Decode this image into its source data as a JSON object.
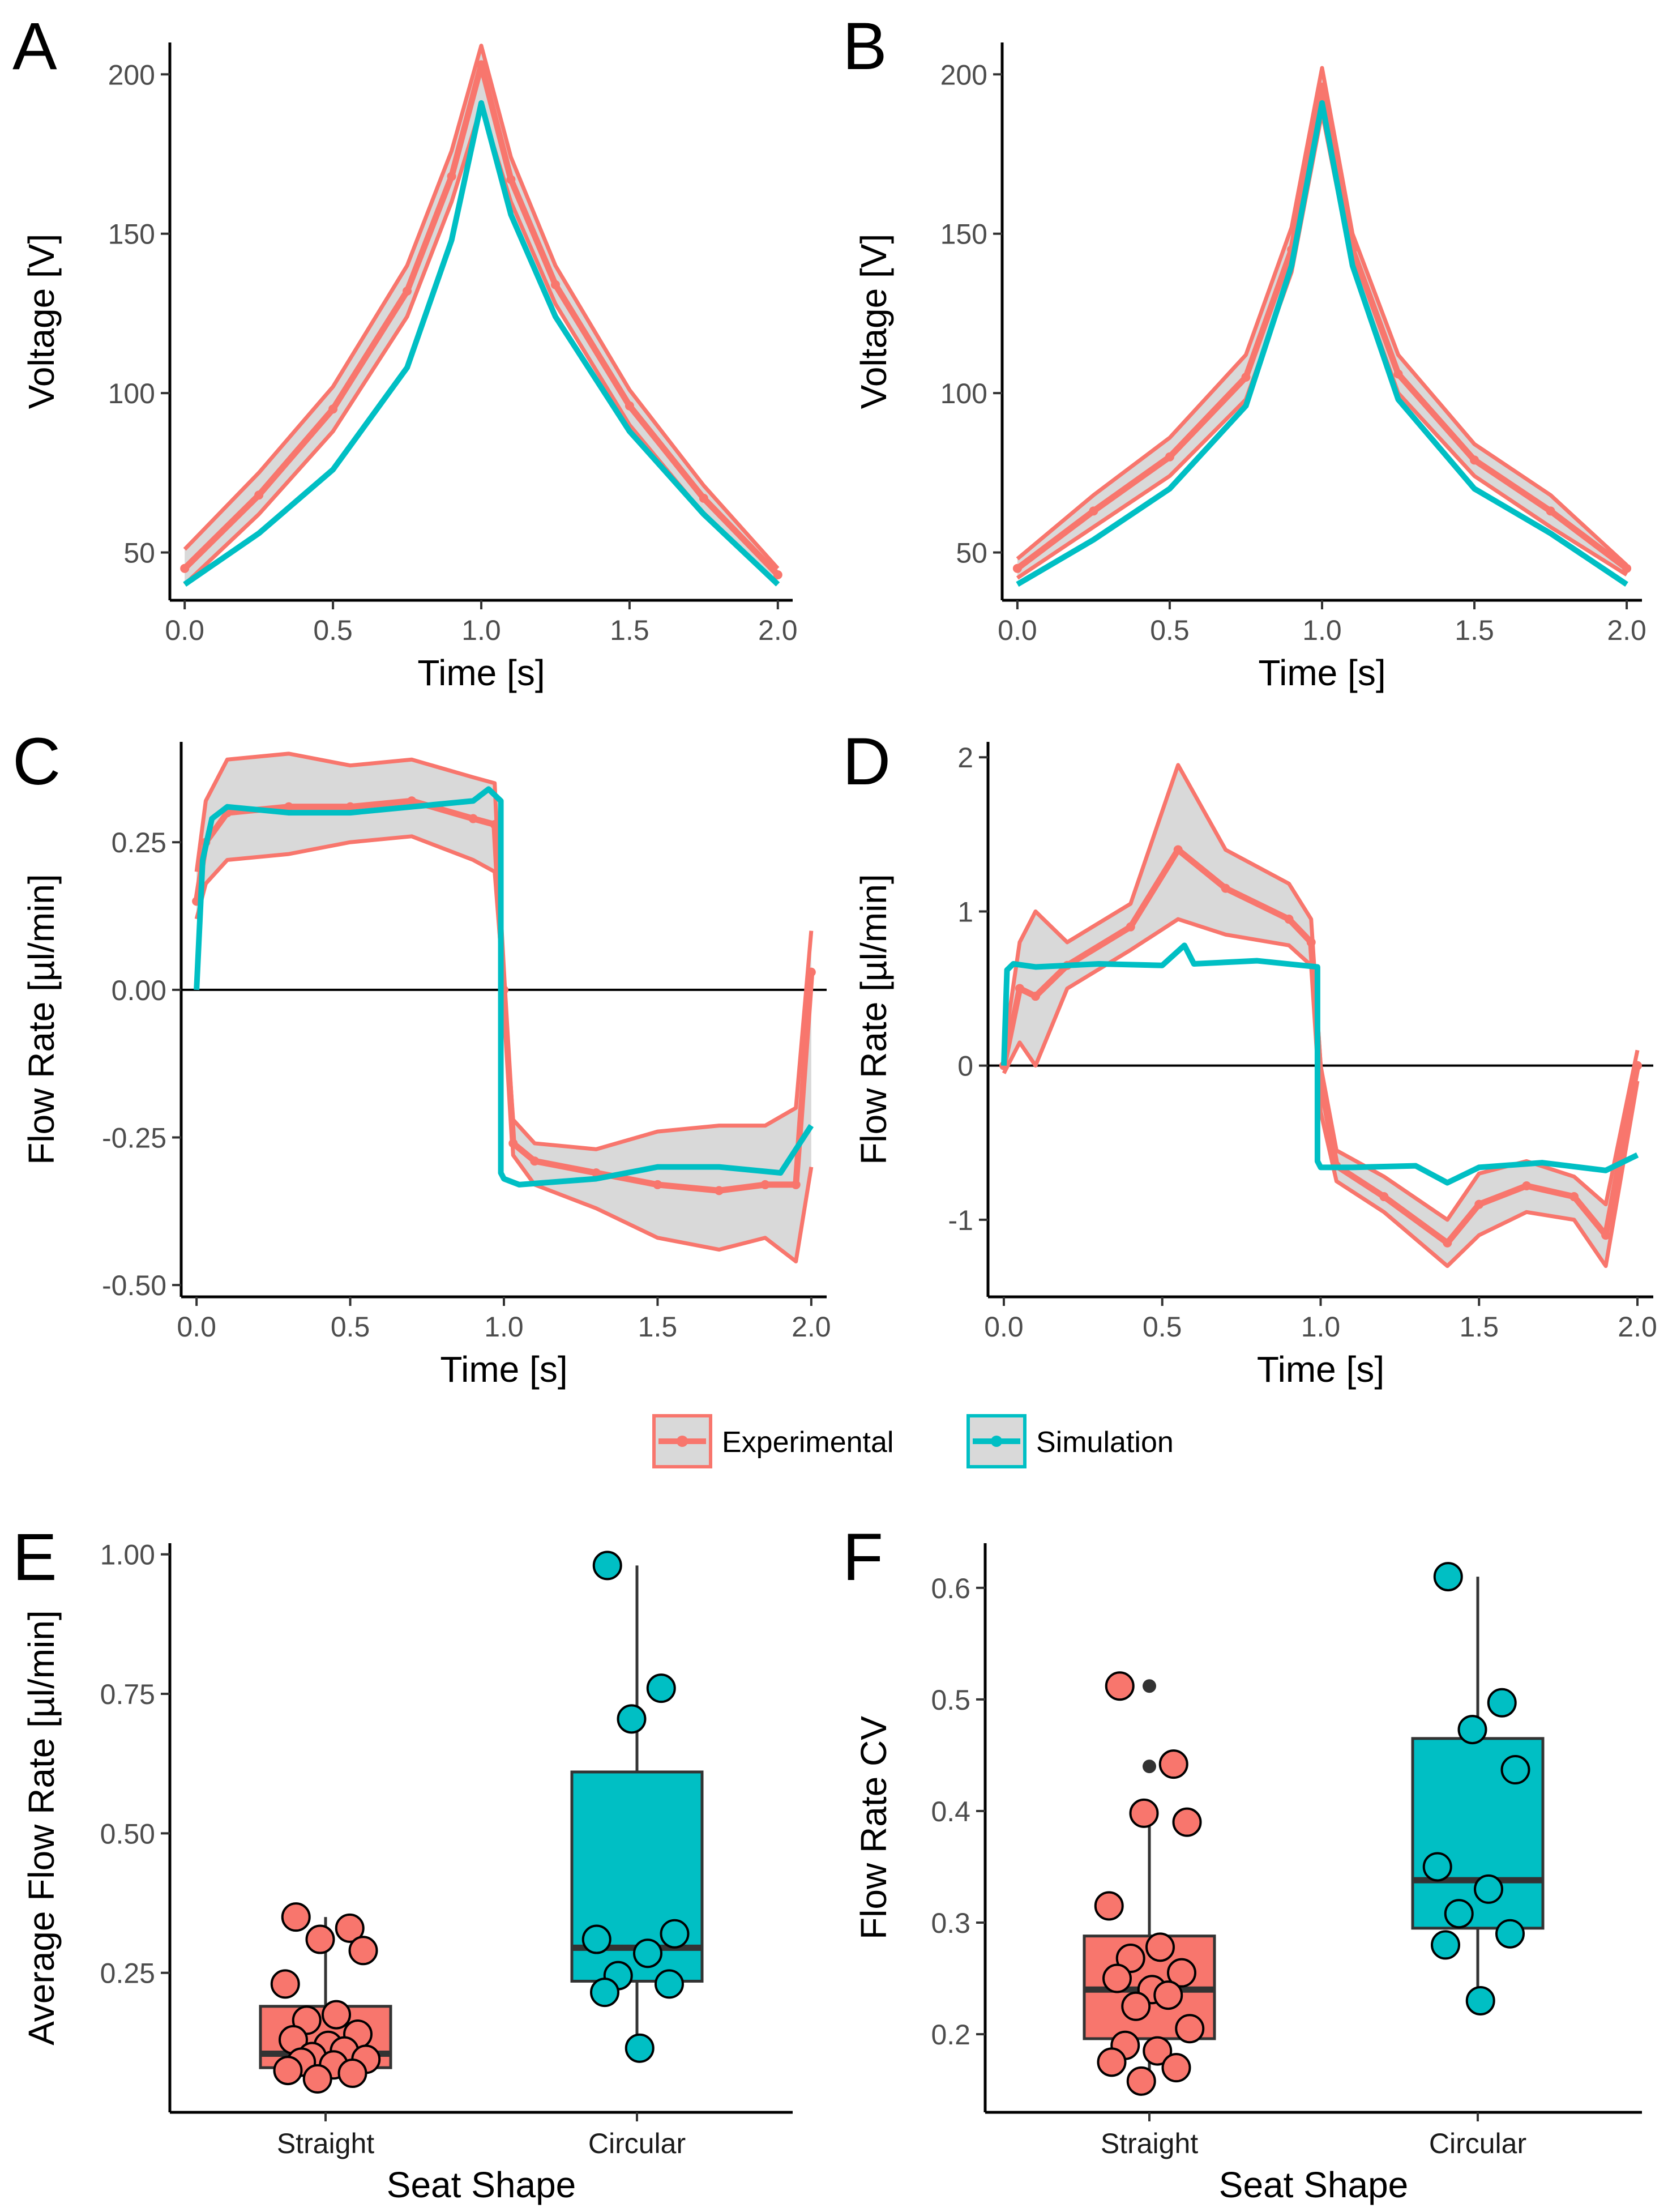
{
  "colors": {
    "experimental": "#F8766D",
    "simulation": "#00BFC4",
    "band": "#D9D9D9",
    "axis": "#000000",
    "box_line": "#333333"
  },
  "legend": {
    "items": [
      {
        "label": "Experimental",
        "color": "#F8766D"
      },
      {
        "label": "Simulation",
        "color": "#00BFC4"
      }
    ]
  },
  "chart_data": [
    {
      "panel": "A",
      "type": "line",
      "xlabel": "Time [s]",
      "ylabel": "Voltage [V]",
      "xlim": [
        -0.05,
        2.05
      ],
      "ylim": [
        35,
        210
      ],
      "xticks": [
        0.0,
        0.5,
        1.0,
        1.5,
        2.0
      ],
      "xtick_labels": [
        "0.0",
        "0.5",
        "1.0",
        "1.5",
        "2.0"
      ],
      "yticks": [
        50,
        100,
        150,
        200
      ],
      "ytick_labels": [
        "50",
        "100",
        "150",
        "200"
      ],
      "series": [
        {
          "name": "Experimental",
          "kind": "band",
          "x": [
            0,
            0.25,
            0.5,
            0.75,
            0.9,
            1.0,
            1.1,
            1.25,
            1.5,
            1.75,
            2.0
          ],
          "lower": [
            40,
            62,
            88,
            124,
            160,
            190,
            160,
            128,
            90,
            62,
            40
          ],
          "upper": [
            51,
            75,
            102,
            140,
            176,
            209,
            174,
            140,
            101,
            71,
            45
          ],
          "mean": [
            45,
            68,
            95,
            132,
            168,
            203,
            167,
            134,
            96,
            67,
            43
          ]
        },
        {
          "name": "Simulation",
          "x": [
            0,
            0.25,
            0.5,
            0.75,
            0.9,
            1.0,
            1.1,
            1.25,
            1.5,
            1.75,
            2.0
          ],
          "y": [
            40,
            56,
            76,
            108,
            148,
            191,
            156,
            124,
            88,
            62,
            40
          ]
        }
      ]
    },
    {
      "panel": "B",
      "type": "line",
      "xlabel": "Time [s]",
      "ylabel": "Voltage [V]",
      "xlim": [
        -0.05,
        2.05
      ],
      "ylim": [
        35,
        210
      ],
      "xticks": [
        0.0,
        0.5,
        1.0,
        1.5,
        2.0
      ],
      "xtick_labels": [
        "0.0",
        "0.5",
        "1.0",
        "1.5",
        "2.0"
      ],
      "yticks": [
        50,
        100,
        150,
        200
      ],
      "ytick_labels": [
        "50",
        "100",
        "150",
        "200"
      ],
      "series": [
        {
          "name": "Experimental",
          "kind": "band",
          "x": [
            0,
            0.25,
            0.5,
            0.75,
            0.9,
            1.0,
            1.1,
            1.25,
            1.5,
            1.75,
            2.0
          ],
          "lower": [
            42,
            58,
            74,
            98,
            138,
            188,
            140,
            100,
            74,
            58,
            43
          ],
          "upper": [
            48,
            68,
            86,
            112,
            152,
            202,
            150,
            112,
            84,
            68,
            46
          ],
          "mean": [
            45,
            63,
            80,
            105,
            145,
            196,
            145,
            106,
            79,
            63,
            45
          ]
        },
        {
          "name": "Simulation",
          "x": [
            0,
            0.25,
            0.5,
            0.75,
            0.9,
            1.0,
            1.1,
            1.25,
            1.5,
            1.75,
            2.0
          ],
          "y": [
            40,
            54,
            70,
            96,
            140,
            191,
            140,
            98,
            70,
            56,
            40
          ]
        }
      ]
    },
    {
      "panel": "C",
      "type": "line",
      "xlabel": "Time [s]",
      "ylabel": "Flow Rate [µl/min]",
      "xlim": [
        -0.05,
        2.05
      ],
      "ylim": [
        -0.52,
        0.42
      ],
      "xticks": [
        0.0,
        0.5,
        1.0,
        1.5,
        2.0
      ],
      "xtick_labels": [
        "0.0",
        "0.5",
        "1.0",
        "1.5",
        "2.0"
      ],
      "yticks": [
        -0.5,
        -0.25,
        0.0,
        0.25
      ],
      "ytick_labels": [
        "-0.50",
        "-0.25",
        "0.00",
        "0.25"
      ],
      "zero_line": 0,
      "series": [
        {
          "name": "Experimental",
          "kind": "band",
          "x": [
            0,
            0.03,
            0.1,
            0.3,
            0.5,
            0.7,
            0.9,
            0.97,
            1.0,
            1.03,
            1.1,
            1.3,
            1.5,
            1.7,
            1.85,
            1.95,
            2.0
          ],
          "lower": [
            0.12,
            0.18,
            0.22,
            0.23,
            0.25,
            0.26,
            0.22,
            0.2,
            0.0,
            -0.28,
            -0.33,
            -0.37,
            -0.42,
            -0.44,
            -0.42,
            -0.46,
            -0.3
          ],
          "upper": [
            0.2,
            0.32,
            0.39,
            0.4,
            0.38,
            0.39,
            0.36,
            0.35,
            0.0,
            -0.22,
            -0.26,
            -0.27,
            -0.24,
            -0.23,
            -0.23,
            -0.2,
            0.1
          ],
          "mean": [
            0.15,
            0.25,
            0.3,
            0.31,
            0.31,
            0.32,
            0.29,
            0.28,
            0.0,
            -0.26,
            -0.29,
            -0.31,
            -0.33,
            -0.34,
            -0.33,
            -0.33,
            0.03
          ]
        },
        {
          "name": "Simulation",
          "x": [
            0,
            0.02,
            0.05,
            0.1,
            0.3,
            0.5,
            0.7,
            0.9,
            0.95,
            0.99,
            0.99,
            1.0,
            1.05,
            1.3,
            1.5,
            1.7,
            1.9,
            2.0
          ],
          "y": [
            0.0,
            0.22,
            0.29,
            0.31,
            0.3,
            0.3,
            0.31,
            0.32,
            0.34,
            0.32,
            -0.31,
            -0.32,
            -0.33,
            -0.32,
            -0.3,
            -0.3,
            -0.31,
            -0.23
          ]
        }
      ]
    },
    {
      "panel": "D",
      "type": "line",
      "xlabel": "Time [s]",
      "ylabel": "Flow Rate [µl/min]",
      "xlim": [
        -0.05,
        2.05
      ],
      "ylim": [
        -1.5,
        2.1
      ],
      "xticks": [
        0.0,
        0.5,
        1.0,
        1.5,
        2.0
      ],
      "xtick_labels": [
        "0.0",
        "0.5",
        "1.0",
        "1.5",
        "2.0"
      ],
      "yticks": [
        -1,
        0,
        1,
        2
      ],
      "ytick_labels": [
        "-1",
        "0",
        "1",
        "2"
      ],
      "zero_line": 0,
      "series": [
        {
          "name": "Experimental",
          "kind": "band",
          "x": [
            0,
            0.05,
            0.1,
            0.2,
            0.4,
            0.55,
            0.7,
            0.9,
            0.97,
            1.0,
            1.05,
            1.2,
            1.4,
            1.5,
            1.65,
            1.8,
            1.9,
            2.0
          ],
          "lower": [
            -0.05,
            0.15,
            0.0,
            0.5,
            0.75,
            0.95,
            0.85,
            0.78,
            0.65,
            -0.3,
            -0.75,
            -0.95,
            -1.3,
            -1.1,
            -0.95,
            -1.0,
            -1.3,
            -0.1
          ],
          "upper": [
            0.1,
            0.8,
            1.0,
            0.8,
            1.05,
            1.95,
            1.4,
            1.18,
            0.95,
            0.0,
            -0.55,
            -0.72,
            -1.0,
            -0.7,
            -0.62,
            -0.72,
            -0.9,
            0.1
          ],
          "mean": [
            0.0,
            0.5,
            0.45,
            0.65,
            0.9,
            1.4,
            1.15,
            0.95,
            0.8,
            -0.1,
            -0.65,
            -0.85,
            -1.15,
            -0.9,
            -0.78,
            -0.85,
            -1.1,
            0.0
          ]
        },
        {
          "name": "Simulation",
          "x": [
            0,
            0.01,
            0.03,
            0.1,
            0.3,
            0.5,
            0.57,
            0.6,
            0.8,
            0.99,
            0.99,
            1.0,
            1.1,
            1.3,
            1.4,
            1.5,
            1.7,
            1.9,
            2.0
          ],
          "y": [
            0.0,
            0.62,
            0.66,
            0.64,
            0.66,
            0.65,
            0.78,
            0.66,
            0.68,
            0.64,
            -0.62,
            -0.66,
            -0.66,
            -0.65,
            -0.76,
            -0.66,
            -0.63,
            -0.68,
            -0.58
          ]
        }
      ]
    },
    {
      "panel": "E",
      "type": "box",
      "xlabel": "Seat Shape",
      "ylabel": "Average Flow Rate [µl/min]",
      "categories": [
        "Straight",
        "Circular"
      ],
      "ylim": [
        0.0,
        1.02
      ],
      "yticks": [
        0.25,
        0.5,
        0.75,
        1.0
      ],
      "ytick_labels": [
        "0.25",
        "0.50",
        "0.75",
        "1.00"
      ],
      "boxes": [
        {
          "category": "Straight",
          "color": "#F8766D",
          "q1": 0.08,
          "median": 0.105,
          "q3": 0.19,
          "whisker_low": 0.06,
          "whisker_high": 0.35,
          "points": [
            0.35,
            0.33,
            0.31,
            0.29,
            0.23,
            0.175,
            0.165,
            0.14,
            0.13,
            0.12,
            0.11,
            0.1,
            0.095,
            0.09,
            0.085,
            0.075,
            0.07,
            0.06
          ]
        },
        {
          "category": "Circular",
          "color": "#00BFC4",
          "q1": 0.235,
          "median": 0.295,
          "q3": 0.61,
          "whisker_low": 0.115,
          "whisker_high": 0.98,
          "points": [
            0.98,
            0.76,
            0.705,
            0.32,
            0.31,
            0.285,
            0.245,
            0.23,
            0.215,
            0.115
          ]
        }
      ]
    },
    {
      "panel": "F",
      "type": "box",
      "xlabel": "Seat Shape",
      "ylabel": "Flow Rate CV",
      "categories": [
        "Straight",
        "Circular"
      ],
      "ylim": [
        0.13,
        0.64
      ],
      "yticks": [
        0.2,
        0.3,
        0.4,
        0.5,
        0.6
      ],
      "ytick_labels": [
        "0.2",
        "0.3",
        "0.4",
        "0.5",
        "0.6"
      ],
      "boxes": [
        {
          "category": "Straight",
          "color": "#F8766D",
          "q1": 0.196,
          "median": 0.24,
          "q3": 0.288,
          "whisker_low": 0.155,
          "whisker_high": 0.4,
          "outliers": [
            0.512,
            0.44
          ],
          "points": [
            0.512,
            0.442,
            0.398,
            0.39,
            0.315,
            0.278,
            0.268,
            0.255,
            0.25,
            0.24,
            0.235,
            0.225,
            0.205,
            0.19,
            0.185,
            0.175,
            0.17,
            0.158
          ]
        },
        {
          "category": "Circular",
          "color": "#00BFC4",
          "q1": 0.295,
          "median": 0.338,
          "q3": 0.465,
          "whisker_low": 0.23,
          "whisker_high": 0.61,
          "points": [
            0.61,
            0.497,
            0.473,
            0.437,
            0.35,
            0.33,
            0.308,
            0.29,
            0.28,
            0.23
          ]
        }
      ]
    }
  ]
}
